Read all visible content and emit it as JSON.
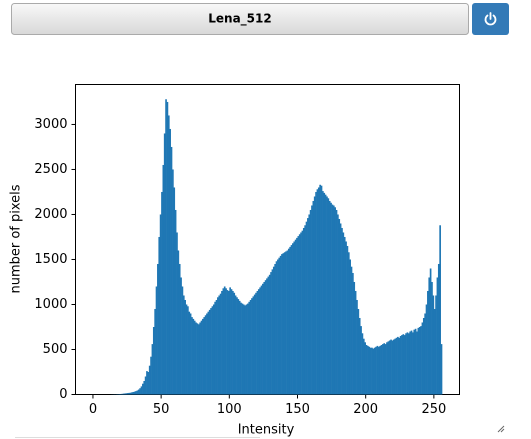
{
  "header": {
    "title": "Lena_512"
  },
  "chart_data": {
    "type": "histogram",
    "xlabel": "Intensity",
    "ylabel": "number of pixels",
    "color": "#1f77b4",
    "bins": [
      0,
      1,
      2,
      3,
      4,
      5,
      6,
      7,
      8,
      9,
      10,
      11,
      12,
      13,
      14,
      15,
      16,
      17,
      18,
      19,
      20,
      21,
      22,
      23,
      24,
      25,
      26,
      27,
      28,
      29,
      30,
      31,
      32,
      33,
      34,
      35,
      36,
      37,
      38,
      39,
      40,
      41,
      42,
      43,
      44,
      45,
      46,
      47,
      48,
      49,
      50,
      51,
      52,
      53,
      54,
      55,
      56,
      57,
      58,
      59,
      60,
      61,
      62,
      63,
      64,
      65,
      66,
      67,
      68,
      69,
      70,
      71,
      72,
      73,
      74,
      75,
      76,
      77,
      78,
      79,
      80,
      81,
      82,
      83,
      84,
      85,
      86,
      87,
      88,
      89,
      90,
      91,
      92,
      93,
      94,
      95,
      96,
      97,
      98,
      99,
      100,
      101,
      102,
      103,
      104,
      105,
      106,
      107,
      108,
      109,
      110,
      111,
      112,
      113,
      114,
      115,
      116,
      117,
      118,
      119,
      120,
      121,
      122,
      123,
      124,
      125,
      126,
      127,
      128,
      129,
      130,
      131,
      132,
      133,
      134,
      135,
      136,
      137,
      138,
      139,
      140,
      141,
      142,
      143,
      144,
      145,
      146,
      147,
      148,
      149,
      150,
      151,
      152,
      153,
      154,
      155,
      156,
      157,
      158,
      159,
      160,
      161,
      162,
      163,
      164,
      165,
      166,
      167,
      168,
      169,
      170,
      171,
      172,
      173,
      174,
      175,
      176,
      177,
      178,
      179,
      180,
      181,
      182,
      183,
      184,
      185,
      186,
      187,
      188,
      189,
      190,
      191,
      192,
      193,
      194,
      195,
      196,
      197,
      198,
      199,
      200,
      201,
      202,
      203,
      204,
      205,
      206,
      207,
      208,
      209,
      210,
      211,
      212,
      213,
      214,
      215,
      216,
      217,
      218,
      219,
      220,
      221,
      222,
      223,
      224,
      225,
      226,
      227,
      228,
      229,
      230,
      231,
      232,
      233,
      234,
      235,
      236,
      237,
      238,
      239,
      240,
      241,
      242,
      243,
      244,
      245,
      246,
      247,
      248,
      249,
      250,
      251,
      252,
      253,
      254,
      255,
      256
    ],
    "values": [
      0,
      0,
      0,
      0,
      0,
      0,
      0,
      0,
      0,
      0,
      0,
      0,
      0,
      1,
      1,
      2,
      2,
      3,
      4,
      5,
      6,
      8,
      10,
      12,
      14,
      16,
      18,
      20,
      24,
      28,
      32,
      38,
      45,
      55,
      70,
      90,
      120,
      150,
      200,
      260,
      250,
      320,
      420,
      560,
      750,
      950,
      1200,
      1450,
      1750,
      2000,
      2250,
      2550,
      2900,
      3280,
      3250,
      3100,
      2950,
      2750,
      2500,
      2300,
      2050,
      1800,
      1600,
      1450,
      1300,
      1200,
      1100,
      1050,
      1000,
      980,
      920,
      900,
      860,
      840,
      820,
      800,
      790,
      780,
      800,
      820,
      840,
      860,
      880,
      900,
      920,
      940,
      960,
      980,
      1000,
      1030,
      1050,
      1080,
      1100,
      1120,
      1150,
      1180,
      1200,
      1180,
      1160,
      1150,
      1190,
      1170,
      1150,
      1130,
      1100,
      1080,
      1060,
      1040,
      1020,
      1010,
      1000,
      990,
      1000,
      1010,
      1030,
      1050,
      1070,
      1090,
      1110,
      1130,
      1150,
      1170,
      1190,
      1210,
      1230,
      1250,
      1270,
      1290,
      1310,
      1330,
      1360,
      1390,
      1420,
      1450,
      1480,
      1500,
      1520,
      1540,
      1560,
      1570,
      1580,
      1590,
      1600,
      1620,
      1640,
      1660,
      1680,
      1700,
      1720,
      1740,
      1760,
      1780,
      1800,
      1820,
      1850,
      1880,
      1920,
      1960,
      2000,
      2050,
      2100,
      2150,
      2200,
      2250,
      2280,
      2300,
      2330,
      2320,
      2260,
      2240,
      2220,
      2200,
      2180,
      2150,
      2130,
      2110,
      2100,
      2080,
      2050,
      2000,
      1950,
      1900,
      1850,
      1800,
      1750,
      1700,
      1650,
      1580,
      1500,
      1420,
      1350,
      1250,
      1150,
      1050,
      950,
      850,
      760,
      680,
      620,
      580,
      550,
      540,
      530,
      520,
      520,
      510,
      520,
      530,
      540,
      530,
      540,
      550,
      560,
      570,
      560,
      580,
      590,
      600,
      610,
      600,
      610,
      620,
      630,
      640,
      630,
      650,
      660,
      670,
      660,
      680,
      690,
      680,
      700,
      710,
      690,
      720,
      730,
      700,
      740,
      750,
      760,
      800,
      850,
      900,
      1000,
      1150,
      1300,
      1400,
      1250,
      1100,
      950,
      1100,
      1300,
      1450,
      1880,
      560
    ],
    "xlim": [
      -12.8,
      268.8
    ],
    "xticks": [
      0,
      50,
      100,
      150,
      200,
      250
    ],
    "ylim": [
      0,
      3444
    ],
    "yticks": [
      0,
      500,
      1000,
      1500,
      2000,
      2500,
      3000
    ]
  }
}
